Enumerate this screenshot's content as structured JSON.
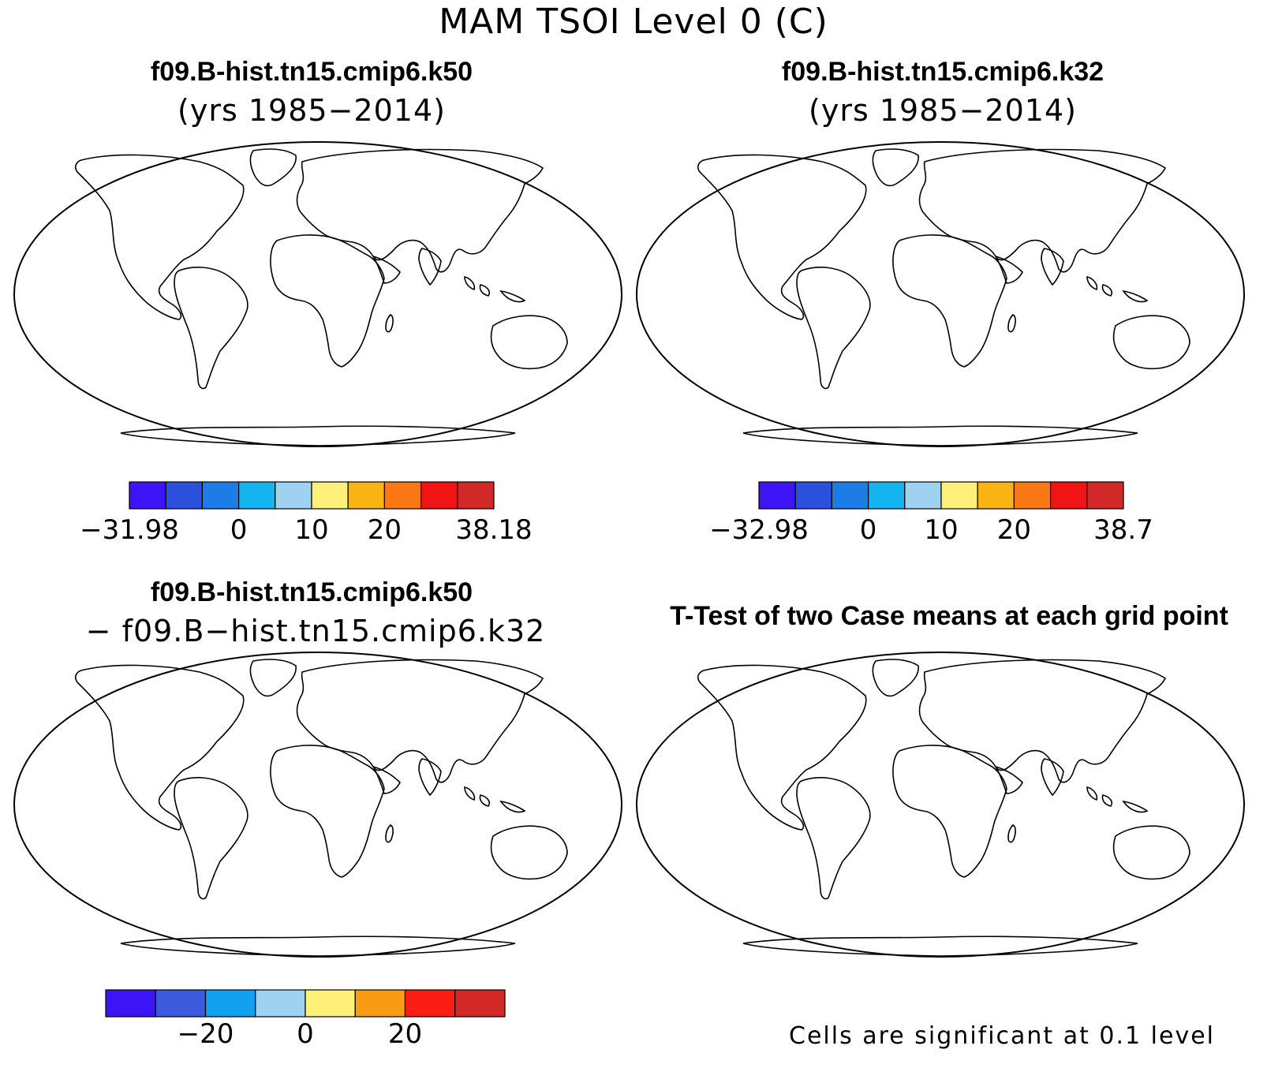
{
  "title": "MAM TSOI Level 0 (C)",
  "panels": [
    {
      "id": "case1",
      "title": "f09.B-hist.tn15.cmip6.k50",
      "subtitle": "(yrs 1985−2014)",
      "colorbar": {
        "colors": [
          "#3c14f5",
          "#2a50dc",
          "#1e7ce6",
          "#14b4f0",
          "#9ed2f0",
          "#fff07a",
          "#fab414",
          "#fa7814",
          "#f01414",
          "#d22828"
        ],
        "ticks": [
          "−31.98",
          "0",
          "10",
          "20",
          "38.18"
        ],
        "tick_bins": [
          0,
          3,
          5,
          7,
          10
        ]
      }
    },
    {
      "id": "case2",
      "title": "f09.B-hist.tn15.cmip6.k32",
      "subtitle": "(yrs 1985−2014)",
      "colorbar": {
        "colors": [
          "#3c14f5",
          "#2a50dc",
          "#1e7ce6",
          "#14b4f0",
          "#9ed2f0",
          "#fff07a",
          "#fab414",
          "#fa7814",
          "#f01414",
          "#d22828"
        ],
        "ticks": [
          "−32.98",
          "0",
          "10",
          "20",
          "38.7"
        ],
        "tick_bins": [
          0,
          3,
          5,
          7,
          10
        ]
      }
    },
    {
      "id": "difference",
      "title": "f09.B-hist.tn15.cmip6.k50",
      "subtitle": "− f09.B−hist.tn15.cmip6.k32",
      "colorbar": {
        "colors": [
          "#3c14f5",
          "#3c5adc",
          "#14a0f0",
          "#9ed2f0",
          "#fff07a",
          "#fa9b14",
          "#fa1e14",
          "#d22828"
        ],
        "ticks": [
          "−20",
          "0",
          "20"
        ],
        "tick_bins": [
          2,
          4,
          6
        ]
      }
    },
    {
      "id": "ttest",
      "title": "T-Test of two Case means at each grid point",
      "note": "Cells are significant at 0.1 level"
    }
  ],
  "map_colors": {
    "outline": "#000000",
    "ocean": "#ffffff",
    "significant": "#f00a0a"
  }
}
